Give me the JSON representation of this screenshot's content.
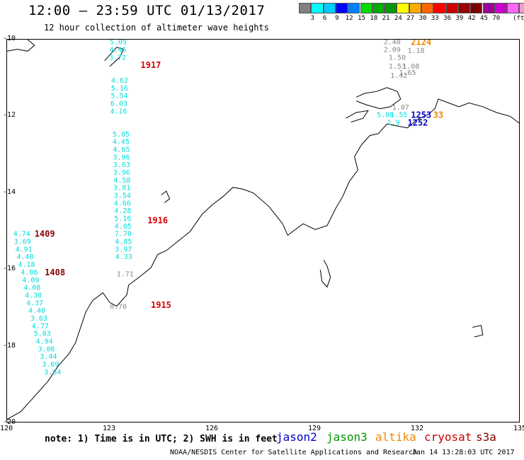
{
  "header": {
    "title": "12:00 – 23:59 UTC 01/13/2017",
    "subtitle": "12 hour collection of altimeter wave heights"
  },
  "colorbar": {
    "colors": [
      "#808080",
      "#00ffff",
      "#00ccff",
      "#0000ff",
      "#0080ff",
      "#00dd00",
      "#00aa00",
      "#009900",
      "#ffff00",
      "#ffaa00",
      "#ff6600",
      "#ff0000",
      "#cc0000",
      "#990000",
      "#800000",
      "#990099",
      "#cc00cc",
      "#ff66ff",
      "#ff99cc",
      "#000000"
    ],
    "labels": [
      "3",
      "6",
      "9",
      "12",
      "15",
      "18",
      "21",
      "24",
      "27",
      "30",
      "33",
      "36",
      "39",
      "42",
      "45",
      "70"
    ],
    "unit": "(ft)"
  },
  "map": {
    "lon_range": [
      120,
      135
    ],
    "lat_range": [
      -20,
      -10
    ],
    "lon_ticks": [
      "120",
      "123",
      "126",
      "129",
      "132",
      "135"
    ],
    "lat_ticks": [
      "-10",
      "-12",
      "-14",
      "-16",
      "-18",
      "-20"
    ],
    "coast_color": "#000000"
  },
  "tracks": [
    {
      "name": "1917",
      "mission": "cryosat",
      "color": "#00dddd",
      "label_color": "#dd0000",
      "label_pos": {
        "lon": 123.9,
        "lat": -10.65
      },
      "points": [
        {
          "lon": 123.0,
          "lat": -10.05,
          "v": "5.05"
        },
        {
          "lon": 122.99,
          "lat": -10.25,
          "v": "4.45"
        },
        {
          "lon": 122.98,
          "lat": -10.45,
          "v": "3.72"
        },
        {
          "lon": 123.04,
          "lat": -11.05,
          "v": "4.62"
        },
        {
          "lon": 123.04,
          "lat": -11.25,
          "v": "5.16"
        },
        {
          "lon": 123.03,
          "lat": -11.45,
          "v": "5.54"
        },
        {
          "lon": 123.02,
          "lat": -11.65,
          "v": "6.03"
        },
        {
          "lon": 123.01,
          "lat": -11.85,
          "v": "4.16"
        },
        {
          "lon": 123.08,
          "lat": -12.45,
          "v": "5.05"
        },
        {
          "lon": 123.08,
          "lat": -12.65,
          "v": "4.45"
        },
        {
          "lon": 123.09,
          "lat": -12.85,
          "v": "4.65"
        },
        {
          "lon": 123.09,
          "lat": -13.05,
          "v": "3.96"
        },
        {
          "lon": 123.1,
          "lat": -13.25,
          "v": "3.63"
        },
        {
          "lon": 123.1,
          "lat": -13.45,
          "v": "3.96"
        },
        {
          "lon": 123.11,
          "lat": -13.65,
          "v": "4.58"
        },
        {
          "lon": 123.11,
          "lat": -13.85,
          "v": "3.81"
        },
        {
          "lon": 123.12,
          "lat": -14.05,
          "v": "3.54"
        },
        {
          "lon": 123.12,
          "lat": -14.25,
          "v": "4.66"
        },
        {
          "lon": 123.13,
          "lat": -14.45,
          "v": "4.28"
        },
        {
          "lon": 123.13,
          "lat": -14.65,
          "v": "5.16"
        },
        {
          "lon": 123.14,
          "lat": -14.85,
          "v": "4.05"
        },
        {
          "lon": 123.14,
          "lat": -15.05,
          "v": "7.70"
        },
        {
          "lon": 123.15,
          "lat": -15.25,
          "v": "4.85"
        },
        {
          "lon": 123.15,
          "lat": -15.45,
          "v": "3.97"
        },
        {
          "lon": 123.16,
          "lat": -15.65,
          "v": "4.33"
        }
      ]
    },
    {
      "name": "1916",
      "mission": "cryosat",
      "color": "#00dddd",
      "label_color": "#dd0000",
      "label_pos": {
        "lon": 124.1,
        "lat": -14.7
      },
      "points": []
    },
    {
      "name": "1915",
      "mission": "cryosat",
      "color": "#888888",
      "label_color": "#dd0000",
      "label_pos": {
        "lon": 124.2,
        "lat": -16.9
      },
      "points": [
        {
          "lon": 123.2,
          "lat": -16.1,
          "v": "1.71"
        },
        {
          "lon": 123.0,
          "lat": -16.95,
          "v": "0.70"
        }
      ]
    },
    {
      "name": "1409",
      "mission": "s3a",
      "color": "#00dddd",
      "label_color": "#880000",
      "label_pos": {
        "lon": 120.8,
        "lat": -15.05
      },
      "points": [
        {
          "lon": 120.18,
          "lat": -15.05,
          "v": "4.74"
        },
        {
          "lon": 120.2,
          "lat": -15.25,
          "v": "3.69"
        },
        {
          "lon": 120.24,
          "lat": -15.45,
          "v": "4.91"
        },
        {
          "lon": 120.28,
          "lat": -15.65,
          "v": "4.48"
        },
        {
          "lon": 120.32,
          "lat": -15.85,
          "v": "4.18"
        },
        {
          "lon": 120.4,
          "lat": -16.05,
          "v": "4.06"
        },
        {
          "lon": 120.44,
          "lat": -16.25,
          "v": "4.09"
        },
        {
          "lon": 120.48,
          "lat": -16.45,
          "v": "4.08"
        },
        {
          "lon": 120.52,
          "lat": -16.65,
          "v": "4.30"
        },
        {
          "lon": 120.56,
          "lat": -16.85,
          "v": "4.37"
        },
        {
          "lon": 120.62,
          "lat": -17.05,
          "v": "4.40"
        },
        {
          "lon": 120.68,
          "lat": -17.25,
          "v": "3.63"
        },
        {
          "lon": 120.72,
          "lat": -17.45,
          "v": "4.77"
        },
        {
          "lon": 120.78,
          "lat": -17.65,
          "v": "5.03"
        },
        {
          "lon": 120.84,
          "lat": -17.85,
          "v": "4.94"
        },
        {
          "lon": 120.9,
          "lat": -18.05,
          "v": "3.06"
        },
        {
          "lon": 120.96,
          "lat": -18.25,
          "v": "3.44"
        },
        {
          "lon": 121.02,
          "lat": -18.45,
          "v": "3.69"
        },
        {
          "lon": 121.08,
          "lat": -18.65,
          "v": "3.64"
        }
      ]
    },
    {
      "name": "1408",
      "mission": "s3a",
      "color": "#00dddd",
      "label_color": "#880000",
      "label_pos": {
        "lon": 121.1,
        "lat": -16.05
      },
      "points": []
    },
    {
      "name": "2124",
      "mission": "altika",
      "color": "#888888",
      "label_color": "#ee8800",
      "label_pos": {
        "lon": 131.8,
        "lat": -10.05
      },
      "points": [
        {
          "lon": 131.0,
          "lat": -10.05,
          "v": "2.40"
        },
        {
          "lon": 131.0,
          "lat": -10.25,
          "v": "2.09"
        },
        {
          "lon": 131.7,
          "lat": -10.28,
          "v": "1.18"
        },
        {
          "lon": 131.15,
          "lat": -10.45,
          "v": "1.50"
        },
        {
          "lon": 131.15,
          "lat": -10.68,
          "v": "1.53"
        },
        {
          "lon": 131.55,
          "lat": -10.68,
          "v": "1.08"
        },
        {
          "lon": 131.45,
          "lat": -10.85,
          "v": "1.65"
        },
        {
          "lon": 131.2,
          "lat": -10.92,
          "v": "1.42"
        },
        {
          "lon": 131.25,
          "lat": -11.75,
          "v": "1.07"
        }
      ]
    },
    {
      "name": "1253",
      "mission": "jason2",
      "color": "#00dddd",
      "label_color": "#0000cc",
      "label_pos": {
        "lon": 131.8,
        "lat": -11.95
      },
      "points": [
        {
          "lon": 130.8,
          "lat": -11.95,
          "v": "5.08"
        },
        {
          "lon": 131.2,
          "lat": -11.95,
          "v": "1.55"
        },
        {
          "lon": 131.1,
          "lat": -12.15,
          "v": "1.9"
        }
      ]
    },
    {
      "name": "1252",
      "mission": "jason2",
      "color": "#00dddd",
      "label_color": "#0000cc",
      "label_pos": {
        "lon": 131.7,
        "lat": -12.15
      },
      "points": []
    },
    {
      "name": "33",
      "mission": "altika",
      "color": "#00dddd",
      "label_color": "#ee8800",
      "label_pos": {
        "lon": 132.45,
        "lat": -11.95
      },
      "points": []
    }
  ],
  "footer": {
    "note": "note: 1) Time is in UTC; 2) SWH is in feet",
    "missions": [
      {
        "name": "jason2",
        "color": "#0000cc"
      },
      {
        "name": "jason3",
        "color": "#009900"
      },
      {
        "name": "altika",
        "color": "#ee8800"
      },
      {
        "name": "cryosat",
        "color": "#cc0000"
      },
      {
        "name": "s3a",
        "color": "#880000"
      }
    ],
    "credit": "NOAA/NESDIS Center for Satellite Applications and Research",
    "timestamp": "Jan 14 13:28:03 UTC 2017"
  }
}
